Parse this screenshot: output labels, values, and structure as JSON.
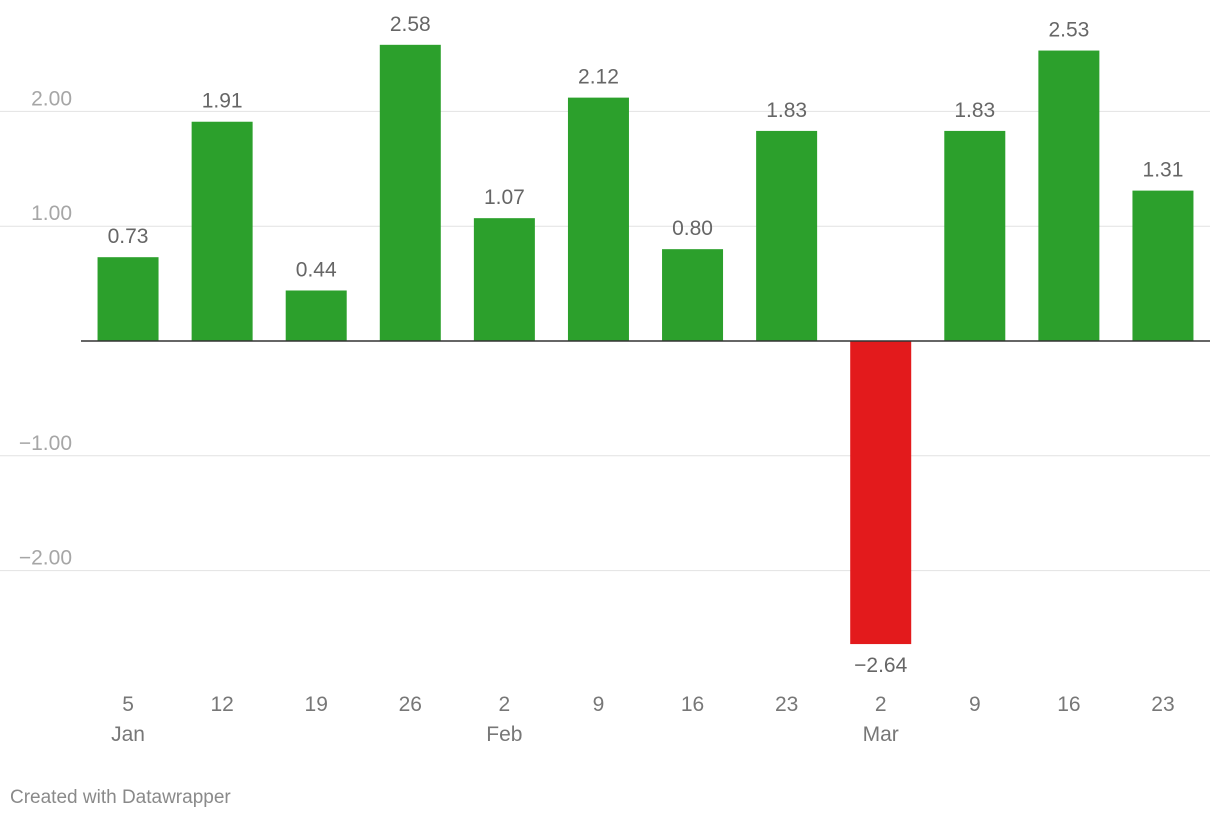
{
  "chart_data": {
    "type": "bar",
    "categories": [
      "5",
      "12",
      "19",
      "26",
      "2",
      "9",
      "16",
      "23",
      "2",
      "9",
      "16",
      "23"
    ],
    "month_labels": [
      {
        "index": 0,
        "label": "Jan"
      },
      {
        "index": 4,
        "label": "Feb"
      },
      {
        "index": 8,
        "label": "Mar"
      }
    ],
    "values": [
      0.73,
      1.91,
      0.44,
      2.58,
      1.07,
      2.12,
      0.8,
      1.83,
      -2.64,
      1.83,
      2.53,
      1.31
    ],
    "value_labels": [
      "0.73",
      "1.91",
      "0.44",
      "2.58",
      "1.07",
      "2.12",
      "0.80",
      "1.83",
      "−2.64",
      "1.83",
      "2.53",
      "1.31"
    ],
    "yticks": [
      {
        "value": 2,
        "label": "2.00"
      },
      {
        "value": 1,
        "label": "1.00"
      },
      {
        "value": -1,
        "label": "−1.00"
      },
      {
        "value": -2,
        "label": "−2.00"
      }
    ],
    "ylim": [
      -2.64,
      2.58
    ],
    "grid": true,
    "colors": {
      "positive": "#2ca02c",
      "negative": "#e31a1c",
      "grid": "#e2e2e2",
      "zero_line": "#333333"
    },
    "title": "",
    "xlabel": "",
    "ylabel": ""
  },
  "footer": {
    "credit": "Created with Datawrapper"
  }
}
